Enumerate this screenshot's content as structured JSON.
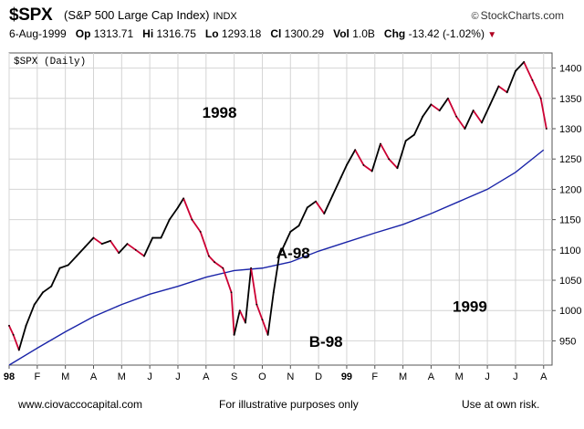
{
  "header": {
    "symbol": "$SPX",
    "name": "(S&P 500 Large Cap Index)",
    "exchange": "INDX",
    "brand": "StockCharts.com",
    "date": "6-Aug-1999",
    "open_label": "Op",
    "open": "1313.71",
    "high_label": "Hi",
    "high": "1316.75",
    "low_label": "Lo",
    "low": "1293.18",
    "close_label": "Cl",
    "close": "1300.29",
    "volume_label": "Vol",
    "volume": "1.0B",
    "change_label": "Chg",
    "change": "-13.42 (-1.02%)"
  },
  "footer": {
    "website": "www.ciovaccocapital.com",
    "note": "For illustrative purposes only",
    "disclaimer": "Use at own risk."
  },
  "chart_data": {
    "type": "line",
    "panel_label": "$SPX (Daily)",
    "y_ticks": [
      950,
      1000,
      1050,
      1100,
      1150,
      1200,
      1250,
      1300,
      1350,
      1400
    ],
    "ylim": [
      910,
      1425
    ],
    "x_ticks": [
      "98",
      "F",
      "M",
      "A",
      "M",
      "J",
      "J",
      "A",
      "S",
      "O",
      "N",
      "D",
      "99",
      "F",
      "M",
      "A",
      "M",
      "J",
      "J",
      "A"
    ],
    "x_tick_values": [
      0,
      1,
      2,
      3,
      4,
      5,
      6,
      7,
      8,
      9,
      10,
      11,
      12,
      13,
      14,
      15,
      16,
      17,
      18,
      19
    ],
    "xlim": [
      0,
      19.3
    ],
    "grid": true,
    "series": [
      {
        "color": "#000000",
        "down_color": "#cc0033",
        "x": [
          0,
          0.15,
          0.35,
          0.6,
          0.9,
          1.2,
          1.5,
          1.8,
          2.1,
          2.4,
          2.7,
          3.0,
          3.3,
          3.6,
          3.9,
          4.2,
          4.5,
          4.8,
          5.1,
          5.4,
          5.7,
          6.0,
          6.2,
          6.5,
          6.8,
          7.1,
          7.3,
          7.6,
          7.9,
          8.0,
          8.2,
          8.4,
          8.6,
          8.8,
          9.0,
          9.2,
          9.4,
          9.6,
          9.8,
          10.0,
          10.3,
          10.6,
          10.9,
          11.2,
          11.5,
          11.8,
          12.0,
          12.3,
          12.6,
          12.9,
          13.2,
          13.5,
          13.8,
          14.1,
          14.4,
          14.7,
          15.0,
          15.3,
          15.6,
          15.9,
          16.2,
          16.5,
          16.8,
          17.1,
          17.4,
          17.7,
          18.0,
          18.3,
          18.6,
          18.9,
          19.1
        ],
        "values": [
          975,
          960,
          935,
          975,
          1010,
          1030,
          1040,
          1070,
          1075,
          1090,
          1105,
          1120,
          1110,
          1115,
          1095,
          1110,
          1100,
          1090,
          1120,
          1120,
          1150,
          1170,
          1185,
          1150,
          1130,
          1090,
          1080,
          1070,
          1030,
          960,
          1000,
          980,
          1070,
          1010,
          985,
          960,
          1030,
          1090,
          1110,
          1130,
          1140,
          1170,
          1180,
          1160,
          1190,
          1220,
          1240,
          1265,
          1240,
          1230,
          1275,
          1250,
          1235,
          1280,
          1290,
          1320,
          1340,
          1330,
          1350,
          1320,
          1300,
          1330,
          1310,
          1340,
          1370,
          1360,
          1395,
          1410,
          1380,
          1350,
          1300
        ]
      },
      {
        "color": "#1a24a8",
        "x": [
          0,
          1,
          2,
          3,
          4,
          5,
          6,
          7,
          8,
          9,
          10,
          11,
          12,
          13,
          14,
          15,
          16,
          17,
          18,
          19
        ],
        "values": [
          910,
          938,
          965,
          990,
          1010,
          1027,
          1040,
          1055,
          1066,
          1070,
          1080,
          1098,
          1113,
          1128,
          1142,
          1160,
          1180,
          1200,
          1228,
          1265
        ]
      }
    ],
    "annotations": [
      {
        "text": "1998",
        "x": 5.1,
        "y": 1318
      },
      {
        "text": "A-98",
        "x": 10.1,
        "y": 1088
      },
      {
        "text": "B-98",
        "x": 11.9,
        "y": 942
      },
      {
        "text": "1999",
        "x": 27.1,
        "y": 1000
      }
    ]
  }
}
